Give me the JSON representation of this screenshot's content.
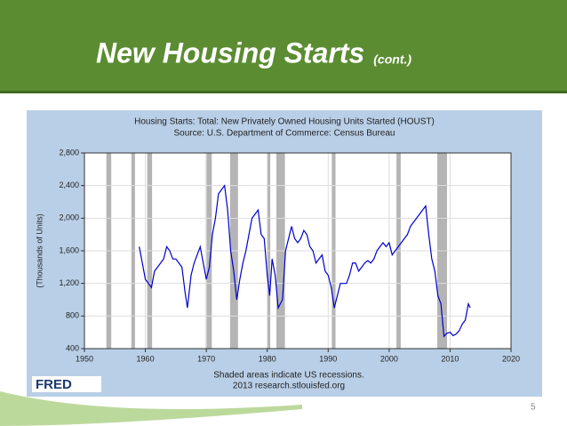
{
  "slide": {
    "title": "New Housing Starts",
    "title_suffix": "(cont.)",
    "page_number": 5
  },
  "chart_data": {
    "type": "line",
    "title": "Housing Starts: Total: New Privately Owned Housing Units Started (HOUST)",
    "subtitle": "Source: U.S. Department of Commerce: Census Bureau",
    "ylabel": "(Thousands of Units)",
    "notes": [
      "Shaded areas indicate US recessions.",
      "2013 research.stlouisfed.org"
    ],
    "logo": "FRED",
    "color": "#0000cc",
    "recession_color": "#b4b4b4",
    "recessions": [
      [
        1953.6,
        1954.4
      ],
      [
        1957.7,
        1958.3
      ],
      [
        1960.3,
        1961.1
      ],
      [
        1969.9,
        1970.9
      ],
      [
        1973.9,
        1975.2
      ],
      [
        1980.0,
        1980.5
      ],
      [
        1981.5,
        1982.9
      ],
      [
        1990.6,
        1991.2
      ],
      [
        2001.2,
        2001.9
      ],
      [
        2007.9,
        2009.5
      ]
    ],
    "x": [
      1959.0,
      1959.5,
      1960.0,
      1960.5,
      1961.0,
      1961.5,
      1962.0,
      1962.5,
      1963.0,
      1963.5,
      1964.0,
      1964.5,
      1965.0,
      1965.5,
      1966.0,
      1966.5,
      1966.9,
      1967.5,
      1968.0,
      1968.5,
      1969.0,
      1969.5,
      1970.0,
      1970.5,
      1971.0,
      1971.5,
      1972.0,
      1972.5,
      1973.0,
      1973.5,
      1974.0,
      1974.5,
      1975.0,
      1975.5,
      1976.0,
      1976.5,
      1977.0,
      1977.5,
      1978.0,
      1978.5,
      1979.0,
      1979.5,
      1980.0,
      1980.4,
      1980.8,
      1981.3,
      1981.8,
      1982.5,
      1983.0,
      1983.5,
      1984.0,
      1984.5,
      1985.0,
      1985.5,
      1986.0,
      1986.5,
      1987.0,
      1987.5,
      1988.0,
      1988.5,
      1989.0,
      1989.5,
      1990.0,
      1990.5,
      1991.0,
      1991.5,
      1992.0,
      1992.5,
      1993.0,
      1993.5,
      1994.0,
      1994.5,
      1995.0,
      1995.5,
      1996.0,
      1996.5,
      1997.0,
      1997.5,
      1998.0,
      1998.5,
      1999.0,
      1999.5,
      2000.0,
      2000.5,
      2001.0,
      2001.5,
      2002.0,
      2002.5,
      2003.0,
      2003.5,
      2004.0,
      2004.5,
      2005.0,
      2005.5,
      2006.0,
      2006.5,
      2007.0,
      2007.5,
      2008.0,
      2008.5,
      2009.0,
      2009.5,
      2010.0,
      2010.5,
      2011.0,
      2011.5,
      2012.0,
      2012.5,
      2013.0,
      2013.3
    ],
    "values": [
      1650,
      1450,
      1250,
      1200,
      1150,
      1350,
      1400,
      1450,
      1500,
      1650,
      1600,
      1500,
      1500,
      1450,
      1400,
      1100,
      900,
      1300,
      1450,
      1550,
      1650,
      1450,
      1250,
      1400,
      1800,
      2000,
      2300,
      2350,
      2400,
      2100,
      1600,
      1350,
      1000,
      1250,
      1450,
      1600,
      1800,
      2000,
      2050,
      2100,
      1800,
      1750,
      1300,
      1050,
      1500,
      1300,
      900,
      1000,
      1600,
      1750,
      1900,
      1750,
      1700,
      1750,
      1850,
      1800,
      1650,
      1600,
      1450,
      1500,
      1550,
      1350,
      1300,
      1150,
      900,
      1050,
      1200,
      1200,
      1200,
      1300,
      1450,
      1450,
      1350,
      1400,
      1450,
      1480,
      1450,
      1500,
      1600,
      1650,
      1700,
      1650,
      1700,
      1550,
      1600,
      1650,
      1700,
      1750,
      1800,
      1900,
      1950,
      2000,
      2050,
      2100,
      2150,
      1800,
      1500,
      1350,
      1050,
      950,
      550,
      590,
      600,
      560,
      580,
      620,
      700,
      750,
      950,
      900
    ],
    "xlim": [
      1950,
      2020
    ],
    "xticks": [
      1950,
      1960,
      1970,
      1980,
      1990,
      2000,
      2010,
      2020
    ],
    "ylim": [
      400,
      2800
    ],
    "yticks": [
      400,
      800,
      {
        "value": 1200,
        "label": "1,200"
      },
      {
        "value": 1600,
        "label": "1,600"
      },
      {
        "value": 2000,
        "label": "2,000"
      },
      {
        "value": 2400,
        "label": "2,400"
      },
      {
        "value": 2800,
        "label": "2,800"
      }
    ],
    "grid": true
  }
}
